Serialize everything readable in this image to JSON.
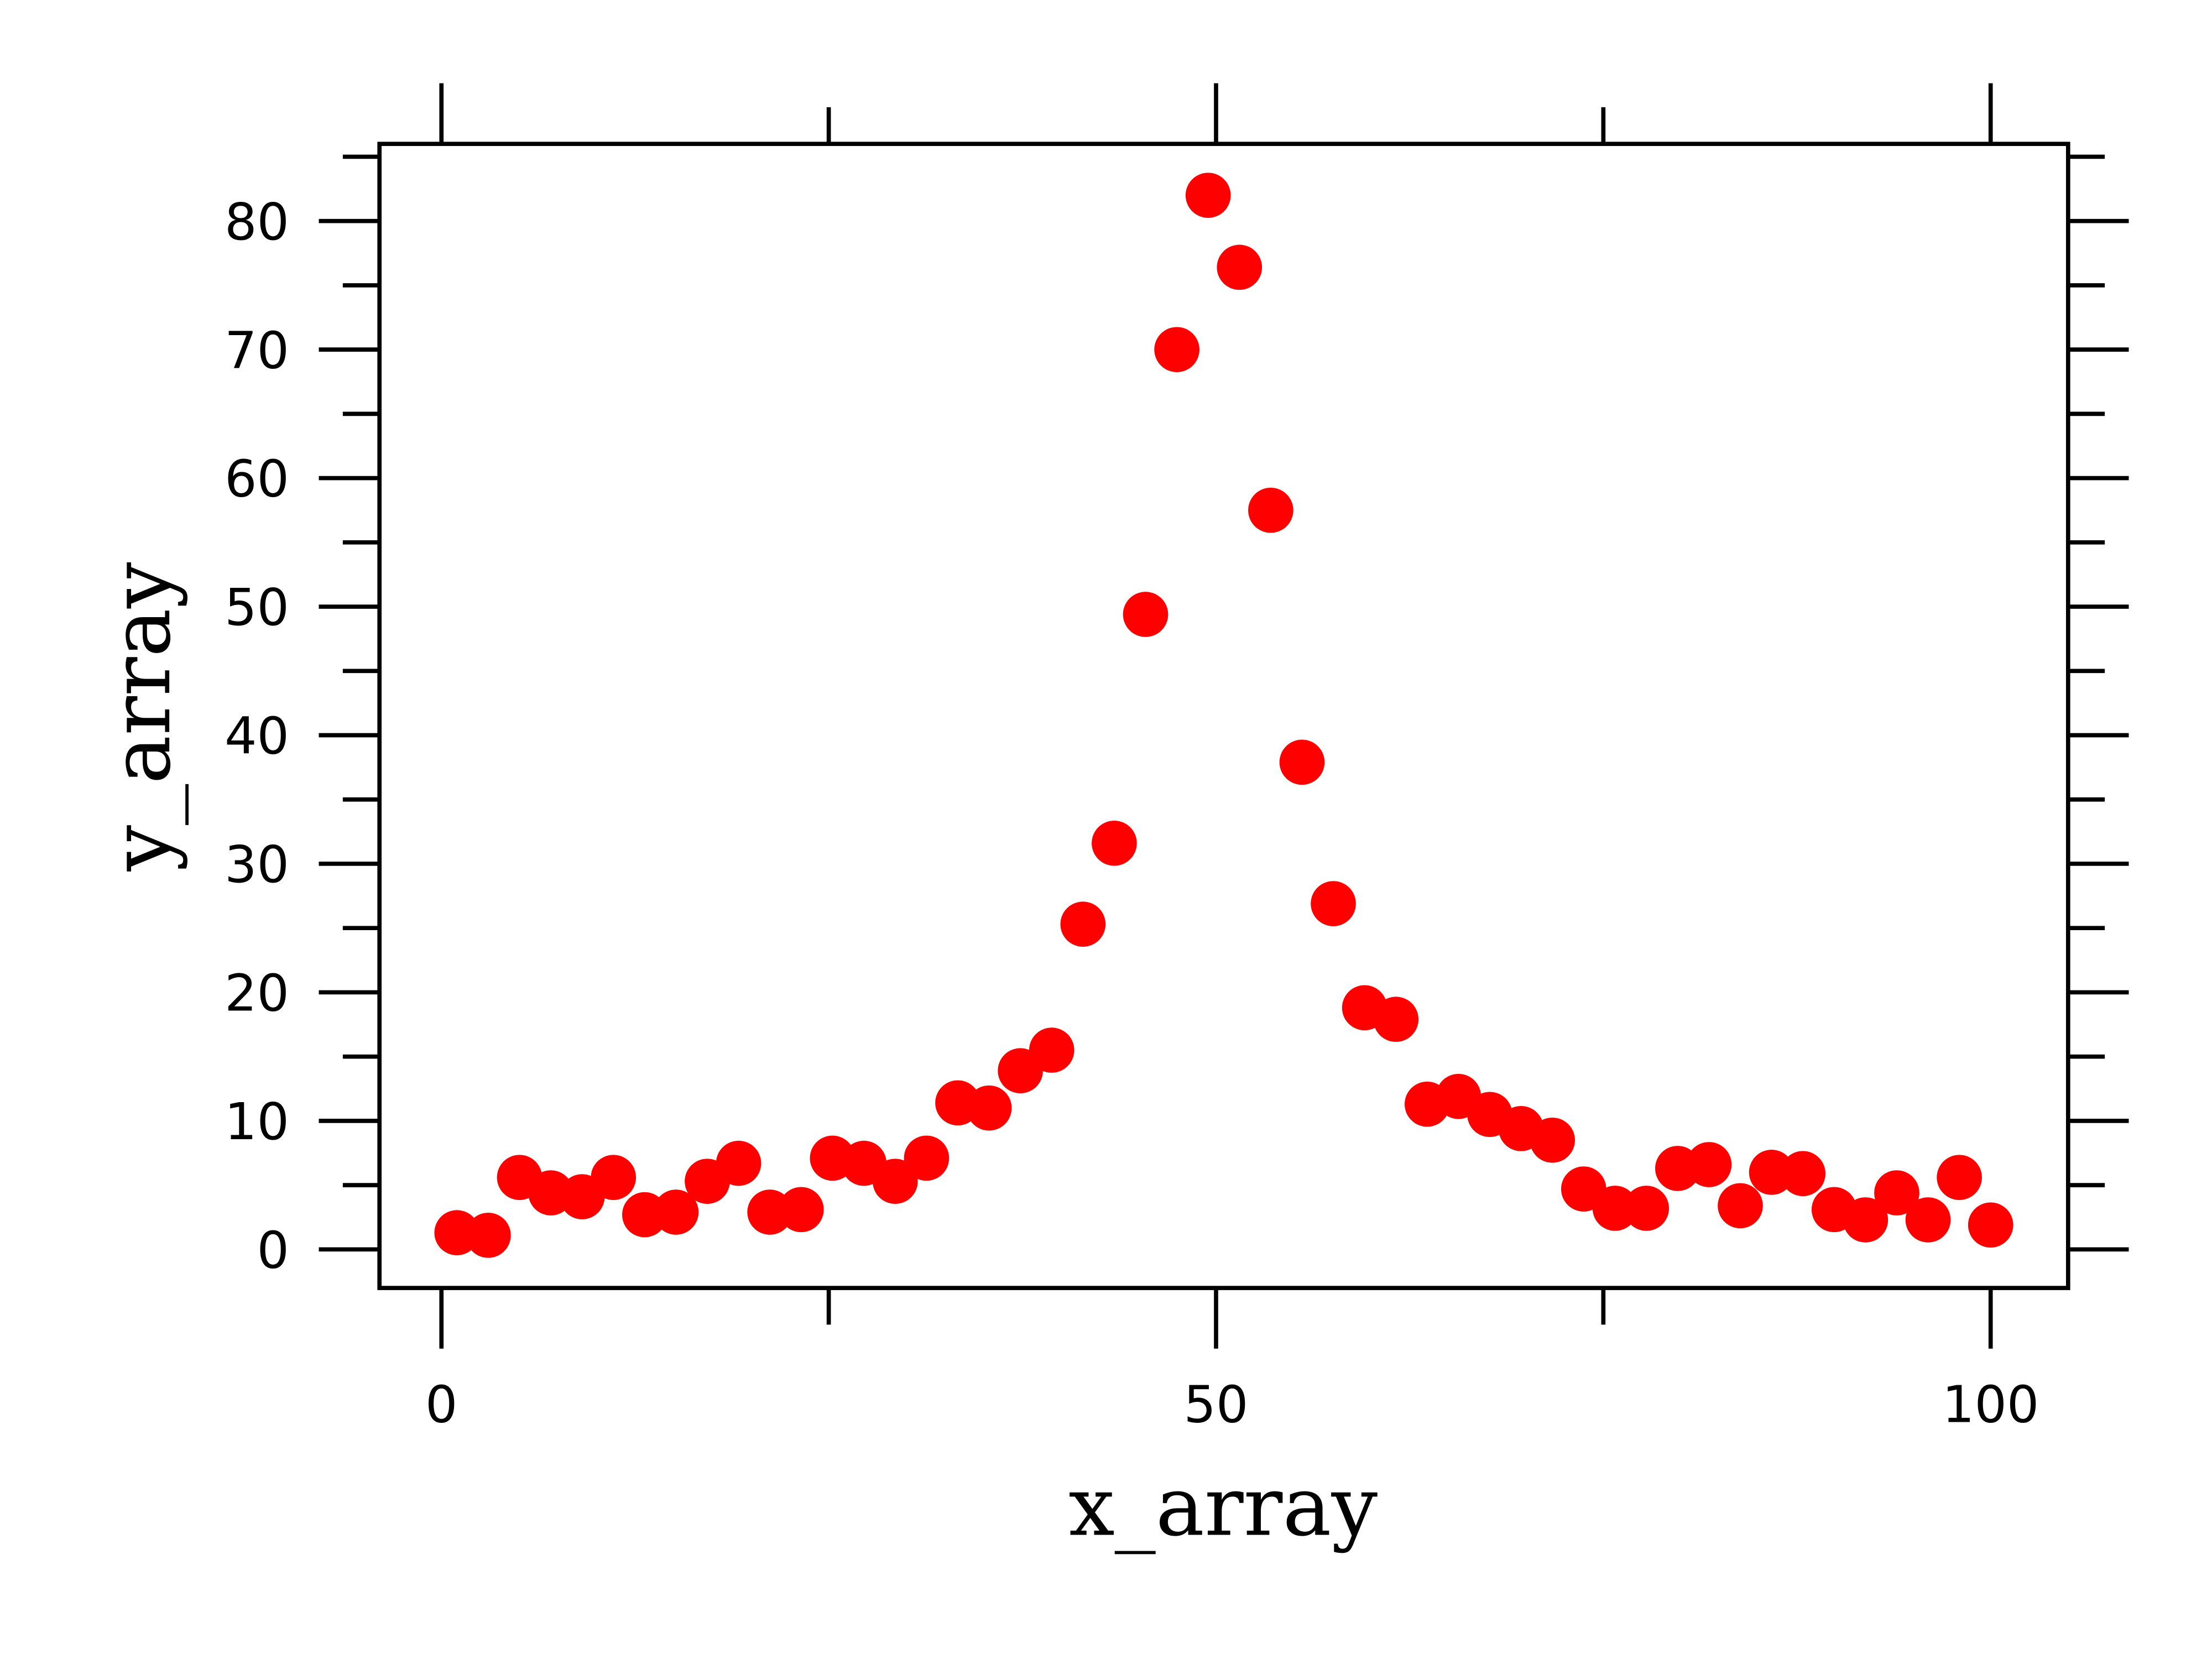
{
  "chart_data": {
    "type": "scatter",
    "x_label": "x_array",
    "y_label": "y_array",
    "color": "#ff0000",
    "x": [
      1,
      3.02,
      5.04,
      7.06,
      9.08,
      11.1,
      13.12,
      15.14,
      17.16,
      19.18,
      21.2,
      23.22,
      25.24,
      27.27,
      29.29,
      31.31,
      33.33,
      35.35,
      37.37,
      39.39,
      41.41,
      43.43,
      45.45,
      47.47,
      49.49,
      51.51,
      53.53,
      55.55,
      57.57,
      59.59,
      61.61,
      63.63,
      65.65,
      67.67,
      69.69,
      71.71,
      73.73,
      75.76,
      77.78,
      79.8,
      81.82,
      83.84,
      85.86,
      87.88,
      89.9,
      91.92,
      93.94,
      95.96,
      97.98,
      100
    ],
    "values": [
      1.3,
      1.1,
      5.6,
      4.4,
      4.1,
      5.6,
      2.7,
      2.9,
      5.3,
      6.7,
      2.9,
      3.1,
      7.1,
      6.7,
      5.3,
      7.1,
      11.4,
      11.0,
      13.9,
      15.5,
      25.3,
      31.6,
      49.4,
      70.0,
      82.0,
      76.4,
      57.5,
      37.9,
      26.9,
      18.8,
      17.9,
      11.3,
      11.9,
      10.5,
      9.4,
      8.5,
      4.7,
      3.2,
      3.2,
      6.3,
      6.6,
      3.4,
      6.0,
      5.9,
      3.1,
      2.3,
      4.4,
      2.3,
      5.6,
      1.9
    ],
    "xlim": [
      -4,
      105
    ],
    "ylim": [
      -3,
      86
    ],
    "xticks": [
      0,
      50,
      100
    ],
    "xminorticks": [
      25,
      75
    ],
    "yticks": [
      0,
      10,
      20,
      30,
      40,
      50,
      60,
      70,
      80
    ],
    "yminorticks": [
      5,
      15,
      25,
      35,
      45,
      55,
      65,
      75,
      85
    ],
    "grid": false
  }
}
